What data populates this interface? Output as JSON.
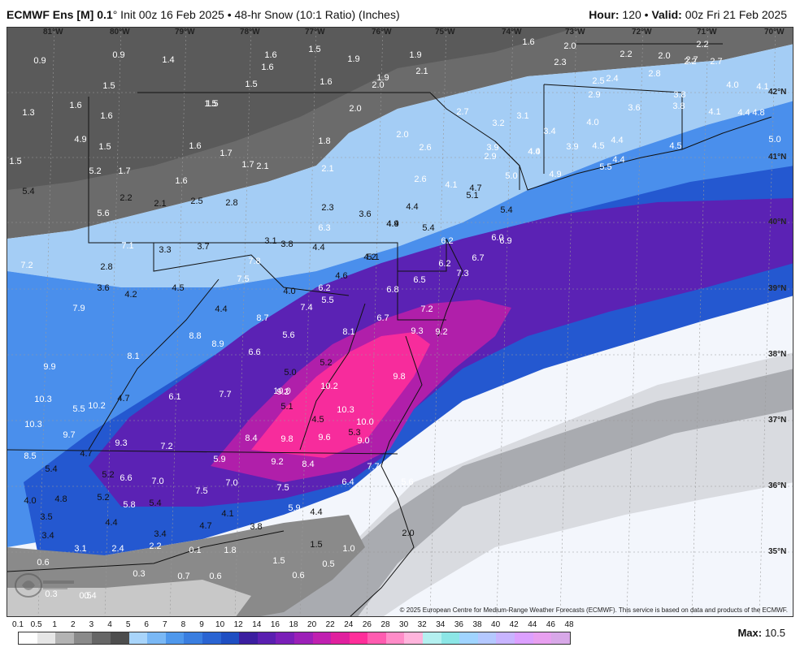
{
  "header": {
    "title_model": "ECMWF Ens [M]",
    "title_res": "0.1",
    "title_deg": "°",
    "title_rest": " Init 00z 16 Feb 2025 • 48-hr Snow (10:1 Ratio) (Inches)",
    "hour_label": "Hour:",
    "hour_value": "120",
    "sep": " • ",
    "valid_label": "Valid:",
    "valid_value": "00z Fri 21 Feb 2025"
  },
  "map": {
    "lon_labels": [
      "81°W",
      "80°W",
      "79°W",
      "78°W",
      "77°W",
      "76°W",
      "75°W",
      "74°W",
      "73°W",
      "72°W",
      "71°W",
      "70°W"
    ],
    "lat_labels": [
      "42°N",
      "41°N",
      "40°N",
      "39°N",
      "38°N",
      "37°N",
      "36°N",
      "35°N"
    ],
    "colors": {
      "land_dark": "#5a5a5a",
      "land_mid": "#8a8a8a",
      "light_blue": "#9cc8f2",
      "blue": "#3f87e8",
      "deep_blue": "#1f54cc",
      "purple": "#5a1fb0",
      "magenta": "#ff2e9a",
      "ocean": "#f2f5fb"
    },
    "values": [
      {
        "v": "0.9"
      },
      {
        "v": "0.9"
      },
      {
        "v": "1.4"
      },
      {
        "v": "1.6"
      },
      {
        "v": "1.5"
      },
      {
        "v": "1.9"
      },
      {
        "v": "1.9"
      },
      {
        "v": "1.6"
      },
      {
        "v": "2.0"
      },
      {
        "v": "2.2"
      },
      {
        "v": "2.7"
      },
      {
        "v": "1.5"
      },
      {
        "v": "1.6"
      },
      {
        "v": "1.5"
      },
      {
        "v": "1.6"
      },
      {
        "v": "2.0"
      },
      {
        "v": "1.9"
      },
      {
        "v": "2.1"
      },
      {
        "v": "2.3"
      },
      {
        "v": "2.2"
      },
      {
        "v": "2.0"
      },
      {
        "v": "2.2"
      },
      {
        "v": "2.8"
      },
      {
        "v": "2.7"
      },
      {
        "v": "1.3"
      },
      {
        "v": "1.6"
      },
      {
        "v": "1.5"
      },
      {
        "v": "1.5"
      },
      {
        "v": "2.5"
      },
      {
        "v": "2.4"
      },
      {
        "v": "3.8"
      },
      {
        "v": "4.0"
      },
      {
        "v": "4.1"
      },
      {
        "v": "1.5"
      },
      {
        "v": "1.6"
      },
      {
        "v": "2.0"
      },
      {
        "v": "2.7"
      },
      {
        "v": "3.2"
      },
      {
        "v": "3.1"
      },
      {
        "v": "2.9"
      },
      {
        "v": "3.6"
      },
      {
        "v": "3.8"
      },
      {
        "v": "4.1"
      },
      {
        "v": "4.4"
      },
      {
        "v": "4.8"
      },
      {
        "v": "4.9"
      },
      {
        "v": "1.5"
      },
      {
        "v": "1.6"
      },
      {
        "v": "1.7"
      },
      {
        "v": "1.8"
      },
      {
        "v": "2.0"
      },
      {
        "v": "2.9"
      },
      {
        "v": "3.9"
      },
      {
        "v": "4.0"
      },
      {
        "v": "3.9"
      },
      {
        "v": "4.4"
      },
      {
        "v": "4.5"
      },
      {
        "v": "5.0"
      },
      {
        "v": "5.2"
      },
      {
        "v": "1.7"
      },
      {
        "v": "1.7"
      },
      {
        "v": "2.1"
      },
      {
        "v": "2.1"
      },
      {
        "v": "2.6"
      },
      {
        "v": "3.4"
      },
      {
        "v": "4.0"
      },
      {
        "v": "4.5"
      },
      {
        "v": "4.4"
      },
      {
        "v": "4.4"
      },
      {
        "v": "5.4"
      },
      {
        "v": "1.6"
      },
      {
        "v": "2.2"
      },
      {
        "v": "2.1"
      },
      {
        "v": "2.5"
      },
      {
        "v": "2.8"
      },
      {
        "v": "2.6"
      },
      {
        "v": "4.1"
      },
      {
        "v": "4.7"
      },
      {
        "v": "5.0"
      },
      {
        "v": "4.9"
      },
      {
        "v": "5.5"
      },
      {
        "v": "5.6"
      },
      {
        "v": "2.3"
      },
      {
        "v": "3.6"
      },
      {
        "v": "4.4"
      },
      {
        "v": "4.9"
      },
      {
        "v": "5.1"
      },
      {
        "v": "5.4"
      },
      {
        "v": "6.3"
      },
      {
        "v": "4.4"
      },
      {
        "v": "5.4"
      },
      {
        "v": "6.0"
      },
      {
        "v": "6.9"
      },
      {
        "v": "7.1"
      },
      {
        "v": "3.3"
      },
      {
        "v": "3.7"
      },
      {
        "v": "3.1"
      },
      {
        "v": "3.8"
      },
      {
        "v": "4.4"
      },
      {
        "v": "5.1"
      },
      {
        "v": "6.2"
      },
      {
        "v": "6.7"
      },
      {
        "v": "7.2"
      },
      {
        "v": "2.8"
      },
      {
        "v": "3.6"
      },
      {
        "v": "4.2"
      },
      {
        "v": "6.2"
      },
      {
        "v": "7.3"
      },
      {
        "v": "7.5"
      },
      {
        "v": "4.6"
      },
      {
        "v": "6.5"
      },
      {
        "v": "7.8"
      },
      {
        "v": "4.2"
      },
      {
        "v": "4.5"
      },
      {
        "v": "4.0"
      },
      {
        "v": "6.2"
      },
      {
        "v": "6.8"
      },
      {
        "v": "7.9"
      },
      {
        "v": "4.4"
      },
      {
        "v": "5.5"
      },
      {
        "v": "7.4"
      },
      {
        "v": "7.2"
      },
      {
        "v": "8.7"
      },
      {
        "v": "6.7"
      },
      {
        "v": "8.8"
      },
      {
        "v": "5.6"
      },
      {
        "v": "8.1"
      },
      {
        "v": "9.3"
      },
      {
        "v": "9.2"
      },
      {
        "v": "8.9"
      },
      {
        "v": "6.6"
      },
      {
        "v": "8.1"
      },
      {
        "v": "5.2"
      },
      {
        "v": "9.9"
      },
      {
        "v": "5.0"
      },
      {
        "v": "9.8"
      },
      {
        "v": "10.0"
      },
      {
        "v": "10.2"
      },
      {
        "v": "10.3"
      },
      {
        "v": "4.7"
      },
      {
        "v": "6.1"
      },
      {
        "v": "7.7"
      },
      {
        "v": "9.2"
      },
      {
        "v": "10.2"
      },
      {
        "v": "5.5"
      },
      {
        "v": "5.1"
      },
      {
        "v": "10.3"
      },
      {
        "v": "10.3"
      },
      {
        "v": "4.5"
      },
      {
        "v": "10.0"
      },
      {
        "v": "9.7"
      },
      {
        "v": "5.3"
      },
      {
        "v": "9.3"
      },
      {
        "v": "7.2"
      },
      {
        "v": "8.4"
      },
      {
        "v": "9.8"
      },
      {
        "v": "9.6"
      },
      {
        "v": "9.0"
      },
      {
        "v": "8.5"
      },
      {
        "v": "4.7"
      },
      {
        "v": "5.9"
      },
      {
        "v": "9.2"
      },
      {
        "v": "8.4"
      },
      {
        "v": "7.7"
      },
      {
        "v": "5.4"
      },
      {
        "v": "5.2"
      },
      {
        "v": "6.6"
      },
      {
        "v": "7.0"
      },
      {
        "v": "7.5"
      },
      {
        "v": "7.0"
      },
      {
        "v": "7.5"
      },
      {
        "v": "6.4"
      },
      {
        "v": "5.6"
      },
      {
        "v": "4.0"
      },
      {
        "v": "4.8"
      },
      {
        "v": "5.2"
      },
      {
        "v": "5.8"
      },
      {
        "v": "5.4"
      },
      {
        "v": "5.9"
      },
      {
        "v": "4.4"
      },
      {
        "v": "3.5"
      },
      {
        "v": "4.4"
      },
      {
        "v": "4.1"
      },
      {
        "v": "4.7"
      },
      {
        "v": "3.8"
      },
      {
        "v": "3.4"
      },
      {
        "v": "3.4"
      },
      {
        "v": "3.1"
      },
      {
        "v": "2.4"
      },
      {
        "v": "2.2"
      },
      {
        "v": "2.0"
      },
      {
        "v": "0.1"
      },
      {
        "v": "1.8"
      },
      {
        "v": "1.5"
      },
      {
        "v": "1.0"
      },
      {
        "v": "0.6"
      },
      {
        "v": "1.5"
      },
      {
        "v": "0.5"
      },
      {
        "v": "0.3"
      },
      {
        "v": "0.7"
      },
      {
        "v": "0.6"
      },
      {
        "v": "0.6"
      },
      {
        "v": "0.5"
      },
      {
        "v": "0.3"
      },
      {
        "v": "0.4"
      },
      {
        "v": "0.3"
      }
    ],
    "copyright": "© 2025 European Centre for Medium-Range Weather Forecasts (ECMWF). This service is based on data and products of the ECMWF."
  },
  "legend": {
    "labels": [
      "0.1",
      "0.5",
      "1",
      "2",
      "3",
      "4",
      "5",
      "6",
      "7",
      "8",
      "9",
      "10",
      "12",
      "14",
      "16",
      "18",
      "20",
      "22",
      "24",
      "26",
      "28",
      "30",
      "32",
      "34",
      "36",
      "38",
      "40",
      "42",
      "44",
      "46",
      "48"
    ],
    "colors": [
      "#ffffff",
      "#e6e6e6",
      "#b3b3b3",
      "#8a8a8a",
      "#666666",
      "#4d4d4d",
      "#a8d4fa",
      "#7ab8f5",
      "#4f98ec",
      "#3a7ee0",
      "#2a64d2",
      "#1e4ec2",
      "#3b1ea0",
      "#5a1fb0",
      "#7a1fb8",
      "#9c20b8",
      "#c020b0",
      "#e0209e",
      "#ff2e9a",
      "#ff5cb0",
      "#ff8cc8",
      "#ffb4dc",
      "#b4f0f0",
      "#8ce6e6",
      "#a0d4ff",
      "#b4c8ff",
      "#c8b4ff",
      "#dca0ff",
      "#e8a0f0",
      "#d8a8e8"
    ],
    "max_label": "Max:",
    "max_value": "10.5"
  }
}
